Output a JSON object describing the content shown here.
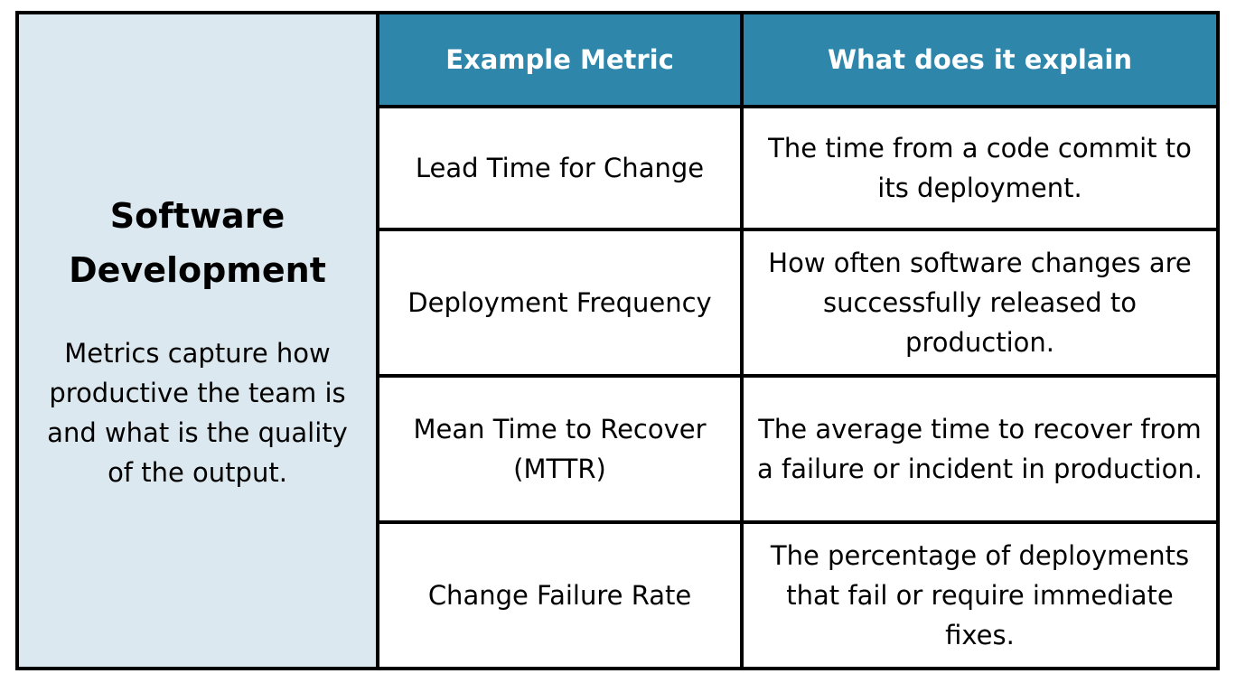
{
  "left_panel": {
    "title_line1": "Software",
    "title_line2": "Development",
    "description": "Metrics capture how productive the team is and what is the quality of the output."
  },
  "table": {
    "headers": [
      "Example Metric",
      "What does it explain"
    ],
    "rows": [
      {
        "metric": "Lead Time for Change",
        "explanation": "The time from a code commit to its deployment."
      },
      {
        "metric": "Deployment Frequency",
        "explanation": "How often software changes are successfully released to production."
      },
      {
        "metric": "Mean Time to Recover (MTTR)",
        "explanation": "The average time to recover from a failure or incident in production."
      },
      {
        "metric": "Change Failure Rate",
        "explanation": "The percentage of deployments that fail or require immediate fixes."
      }
    ]
  },
  "colors": {
    "header_bg": "#2e86ab",
    "left_panel_bg": "#dce8ef",
    "border": "#000000"
  }
}
